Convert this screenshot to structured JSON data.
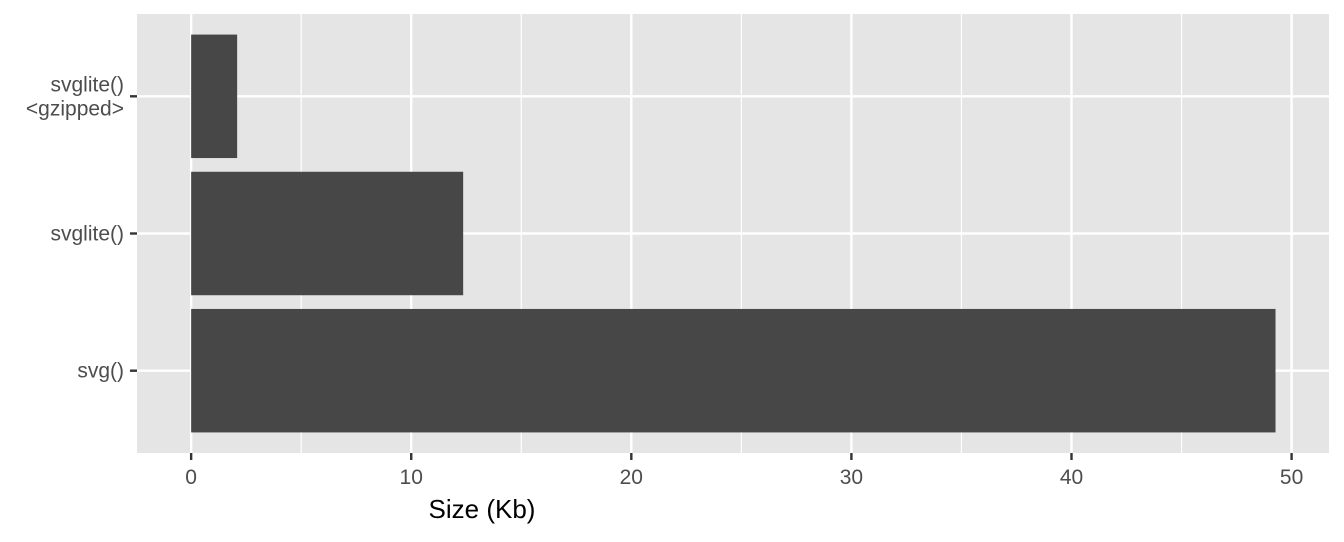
{
  "chart_data": {
    "type": "bar",
    "orientation": "horizontal",
    "categories": [
      "svg()",
      "svglite()",
      "svglite()\n<gzipped>"
    ],
    "values": [
      49.27,
      12.36,
      2.09
    ],
    "title": "",
    "xlabel": "Size (Kb)",
    "ylabel": "",
    "xlim": [
      -2.46,
      51.7
    ],
    "xticks": [
      0,
      10,
      20,
      30,
      40,
      50
    ],
    "xtick_labels": [
      "0",
      "10",
      "20",
      "30",
      "40",
      "50"
    ],
    "grid": true,
    "colors": {
      "bar": "#474747",
      "panel": "#e5e5e5",
      "grid": "#ffffff",
      "text": "#4d4d4d"
    }
  }
}
